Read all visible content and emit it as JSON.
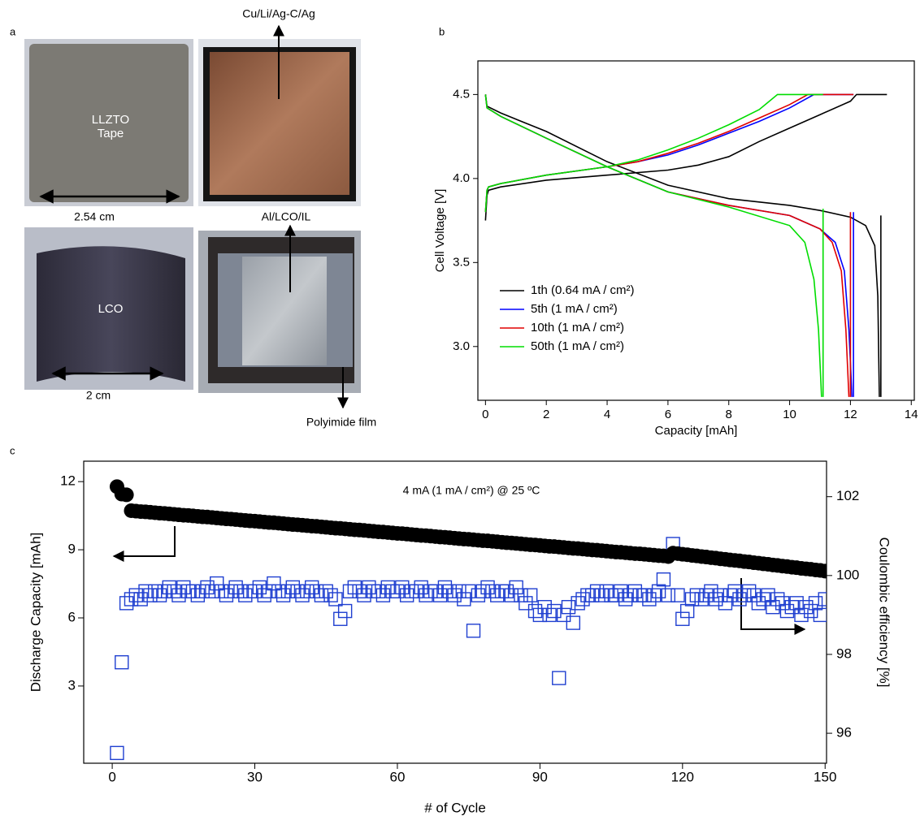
{
  "panel_labels": [
    "a",
    "b",
    "c"
  ],
  "photos": {
    "llzto_label": "LLZTO",
    "llzto_sub": "Tape",
    "top_annotation": "Cu/Li/Ag-C/Ag",
    "width_top": "2.54 cm",
    "middle_annotation": "Al/LCO/IL",
    "lco_label": "LCO",
    "width_bottom": "2 cm",
    "bottom_annotation": "Polyimide film"
  },
  "chart_data": [
    {
      "type": "line",
      "xlabel": "Capacity [mAh]",
      "ylabel": "Cell Voltage [V]",
      "xlim": [
        -0.25,
        14.1
      ],
      "ylim": [
        2.68,
        4.7
      ],
      "xticks": [
        0,
        2,
        4,
        6,
        8,
        10,
        12,
        14
      ],
      "yticks": [
        {
          "value": 3,
          "label": "3.0"
        },
        3.5,
        {
          "value": 4,
          "label": "4.0"
        },
        4.5
      ],
      "legend": "lower left",
      "series": [
        {
          "name": "1th (0.64 mA / cm²)",
          "color": "#000000",
          "x": [
            0,
            0.05,
            0.1,
            0.5,
            2,
            4,
            6,
            7,
            8,
            9,
            10,
            11,
            12,
            12.2,
            13.2,
            null,
            0,
            0.05,
            0.5,
            2,
            4,
            6,
            8,
            10,
            11,
            12,
            12.5,
            12.8,
            12.9,
            12.95,
            null,
            13,
            13
          ],
          "values": [
            3.75,
            3.9,
            3.93,
            3.95,
            3.99,
            4.02,
            4.05,
            4.08,
            4.13,
            4.22,
            4.3,
            4.38,
            4.46,
            4.5,
            4.5,
            null,
            4.5,
            4.43,
            4.39,
            4.28,
            4.1,
            3.96,
            3.88,
            3.84,
            3.81,
            3.77,
            3.72,
            3.6,
            3.3,
            2.7,
            null,
            2.7,
            3.78
          ]
        },
        {
          "name": "5th (1 mA / cm²)",
          "color": "#0000ff",
          "x": [
            0,
            0.05,
            0.1,
            0.5,
            2,
            4,
            5,
            6,
            7,
            8,
            9,
            10,
            10.8,
            12.1,
            null,
            0,
            0.05,
            0.5,
            2,
            4,
            6,
            8,
            10,
            11,
            11.5,
            11.8,
            11.95,
            12.05,
            null,
            12.1,
            12.1
          ],
          "values": [
            3.8,
            3.93,
            3.95,
            3.97,
            4.02,
            4.07,
            4.1,
            4.14,
            4.2,
            4.27,
            4.34,
            4.42,
            4.5,
            4.5,
            null,
            4.5,
            4.42,
            4.37,
            4.24,
            4.07,
            3.92,
            3.84,
            3.78,
            3.7,
            3.62,
            3.45,
            3.1,
            2.7,
            null,
            2.7,
            3.8
          ]
        },
        {
          "name": "10th (1 mA / cm²)",
          "color": "#e00000",
          "x": [
            0,
            0.05,
            0.1,
            0.5,
            2,
            4,
            5,
            6,
            7,
            8,
            9,
            10,
            10.6,
            12.1,
            null,
            0,
            0.05,
            0.5,
            2,
            4,
            6,
            8,
            10,
            11,
            11.4,
            11.7,
            11.85,
            11.95,
            null,
            12,
            12
          ],
          "values": [
            3.8,
            3.93,
            3.95,
            3.97,
            4.02,
            4.07,
            4.1,
            4.15,
            4.21,
            4.28,
            4.36,
            4.44,
            4.5,
            4.5,
            null,
            4.5,
            4.42,
            4.37,
            4.24,
            4.07,
            3.92,
            3.84,
            3.78,
            3.7,
            3.62,
            3.45,
            3.1,
            2.7,
            null,
            2.7,
            3.8
          ]
        },
        {
          "name": "50th (1 mA / cm²)",
          "color": "#00dd00",
          "x": [
            0,
            0.05,
            0.1,
            0.5,
            2,
            4,
            5,
            6,
            7,
            8,
            9,
            9.6,
            11.1,
            null,
            0,
            0.05,
            0.5,
            2,
            4,
            6,
            8,
            10,
            10.5,
            10.8,
            10.95,
            11.05,
            null,
            11.1,
            11.1
          ],
          "values": [
            3.8,
            3.93,
            3.95,
            3.97,
            4.02,
            4.07,
            4.11,
            4.17,
            4.24,
            4.32,
            4.41,
            4.5,
            4.5,
            null,
            4.5,
            4.42,
            4.37,
            4.24,
            4.07,
            3.92,
            3.83,
            3.72,
            3.62,
            3.4,
            3.1,
            2.7,
            null,
            2.7,
            3.82
          ]
        }
      ]
    },
    {
      "type": "scatter",
      "xlabel": "# of Cycle",
      "ylabel": "Discharge Capacity [mAh]",
      "y2label": "Coulombic efficiency [%]",
      "annotation": "4 mA (1 mA / cm²) @ 25 ºC",
      "xlim": [
        -6,
        150.3
      ],
      "ylim": [
        -0.4,
        12.9
      ],
      "y2lim": [
        95.24,
        102.9
      ],
      "xticks": [
        0,
        30,
        60,
        90,
        120,
        150
      ],
      "yticks": [
        3,
        6,
        9,
        12
      ],
      "y2ticks": [
        96,
        98,
        100,
        102
      ],
      "x": [
        1,
        2,
        3,
        4,
        5,
        6,
        7,
        8,
        9,
        10,
        11,
        12,
        13,
        14,
        15,
        16,
        17,
        18,
        19,
        20,
        21,
        22,
        23,
        24,
        25,
        26,
        27,
        28,
        29,
        30,
        31,
        32,
        33,
        34,
        35,
        36,
        37,
        38,
        39,
        40,
        41,
        42,
        43,
        44,
        45,
        46,
        47,
        48,
        49,
        50,
        51,
        52,
        53,
        54,
        55,
        56,
        57,
        58,
        59,
        60,
        61,
        62,
        63,
        64,
        65,
        66,
        67,
        68,
        69,
        70,
        71,
        72,
        73,
        74,
        75,
        76,
        77,
        78,
        79,
        80,
        81,
        82,
        83,
        84,
        85,
        86,
        87,
        88,
        89,
        90,
        91,
        92,
        93,
        94,
        95,
        96,
        97,
        98,
        99,
        100,
        101,
        102,
        103,
        104,
        105,
        106,
        107,
        108,
        109,
        110,
        111,
        112,
        113,
        114,
        115,
        116,
        117,
        118,
        119,
        120,
        121,
        122,
        123,
        124,
        125,
        126,
        127,
        128,
        129,
        130,
        131,
        132,
        133,
        134,
        135,
        136,
        137,
        138,
        139,
        140,
        141,
        142,
        143,
        144,
        145,
        146,
        147,
        148,
        149,
        150
      ],
      "series": [
        {
          "marker": "circle",
          "color": "#000000",
          "values": [
            11.78,
            11.45,
            11.42,
            10.72,
            10.7,
            10.68,
            10.67,
            10.65,
            10.63,
            10.61,
            10.6,
            10.58,
            10.56,
            10.54,
            10.52,
            10.51,
            10.49,
            10.47,
            10.45,
            10.44,
            10.42,
            10.4,
            10.38,
            10.36,
            10.35,
            10.33,
            10.31,
            10.29,
            10.27,
            10.26,
            10.24,
            10.22,
            10.2,
            10.19,
            10.17,
            10.15,
            10.13,
            10.11,
            10.1,
            10.08,
            10.06,
            10.04,
            10.03,
            10.01,
            9.99,
            9.97,
            9.95,
            9.94,
            9.92,
            9.9,
            9.88,
            9.87,
            9.85,
            9.83,
            9.81,
            9.79,
            9.78,
            9.76,
            9.74,
            9.72,
            9.71,
            9.69,
            9.67,
            9.65,
            9.63,
            9.62,
            9.6,
            9.58,
            9.56,
            9.55,
            9.53,
            9.51,
            9.49,
            9.47,
            9.46,
            9.44,
            9.42,
            9.4,
            9.39,
            9.37,
            9.35,
            9.33,
            9.31,
            9.3,
            9.28,
            9.26,
            9.24,
            9.22,
            9.21,
            9.19,
            9.17,
            9.15,
            9.14,
            9.12,
            9.1,
            9.08,
            9.06,
            9.05,
            9.03,
            9.01,
            8.99,
            8.98,
            8.96,
            8.94,
            8.92,
            8.9,
            8.89,
            8.87,
            8.85,
            8.83,
            8.82,
            8.8,
            8.78,
            8.76,
            8.74,
            8.73,
            8.7,
            8.85,
            8.83,
            8.8,
            8.78,
            8.75,
            8.73,
            8.7,
            8.68,
            8.65,
            8.63,
            8.6,
            8.58,
            8.55,
            8.53,
            8.51,
            8.48,
            8.46,
            8.43,
            8.41,
            8.38,
            8.36,
            8.33,
            8.31,
            8.28,
            8.26,
            8.23,
            8.21,
            8.18,
            8.16,
            8.14,
            8.11,
            8.09,
            8.06
          ]
        },
        {
          "marker": "square",
          "color": "#1f3fd0",
          "axis": "y2",
          "values": [
            95.5,
            97.8,
            99.3,
            99.4,
            99.5,
            99.4,
            99.6,
            99.5,
            99.6,
            99.5,
            99.6,
            99.7,
            99.6,
            99.5,
            99.7,
            99.6,
            99.6,
            99.5,
            99.6,
            99.7,
            99.6,
            99.8,
            99.6,
            99.5,
            99.6,
            99.7,
            99.6,
            99.5,
            99.6,
            99.6,
            99.7,
            99.5,
            99.6,
            99.8,
            99.6,
            99.5,
            99.6,
            99.7,
            99.6,
            99.5,
            99.6,
            99.7,
            99.6,
            99.5,
            99.6,
            99.5,
            99.4,
            98.9,
            99.1,
            99.6,
            99.7,
            99.6,
            99.5,
            99.7,
            99.6,
            99.6,
            99.5,
            99.7,
            99.6,
            99.6,
            99.7,
            99.5,
            99.6,
            99.6,
            99.7,
            99.5,
            99.6,
            99.6,
            99.5,
            99.7,
            99.6,
            99.5,
            99.6,
            99.4,
            99.6,
            98.6,
            99.5,
            99.6,
            99.7,
            99.6,
            99.5,
            99.6,
            99.6,
            99.5,
            99.7,
            99.5,
            99.3,
            99.5,
            99.1,
            99.0,
            99.2,
            99.0,
            99.1,
            97.4,
            99.0,
            99.2,
            98.8,
            99.3,
            99.4,
            99.5,
            99.5,
            99.6,
            99.5,
            99.6,
            99.5,
            99.5,
            99.6,
            99.4,
            99.5,
            99.6,
            99.5,
            99.5,
            99.4,
            99.5,
            99.6,
            99.9,
            99.5,
            100.8,
            99.5,
            98.9,
            99.1,
            99.4,
            99.5,
            99.4,
            99.5,
            99.6,
            99.4,
            99.5,
            99.3,
            99.5,
            99.6,
            99.4,
            99.5,
            99.6,
            99.5,
            99.3,
            99.4,
            99.5,
            99.2,
            99.4,
            99.3,
            99.1,
            99.2,
            99.3,
            99.0,
            99.2,
            99.1,
            99.3,
            99.0,
            99.4
          ]
        }
      ]
    }
  ]
}
